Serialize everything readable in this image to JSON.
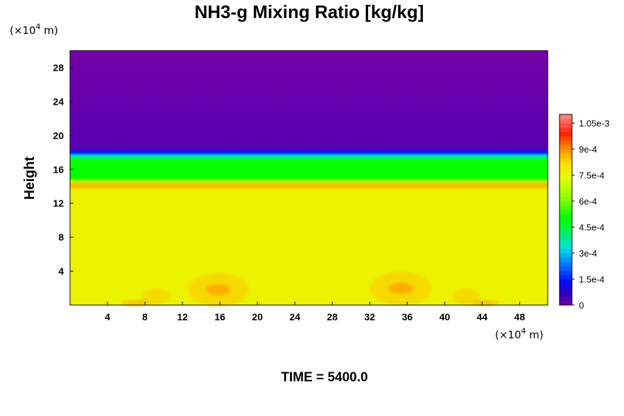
{
  "chart_data": {
    "type": "heatmap",
    "title": "NH3-g Mixing Ratio [kg/kg]",
    "ylabel": "Height",
    "x_unit_prefix": "(×10",
    "x_unit_exp": "4",
    "x_unit_suffix": " m)",
    "y_unit_prefix": "(×10",
    "y_unit_exp": "4",
    "y_unit_suffix": " m)",
    "footer": "TIME = 5400.0",
    "xlim": [
      0,
      51
    ],
    "ylim": [
      0,
      30
    ],
    "x_ticks": [
      4,
      8,
      12,
      16,
      20,
      24,
      28,
      32,
      36,
      40,
      44,
      48
    ],
    "y_ticks": [
      4,
      8,
      12,
      16,
      20,
      24,
      28
    ],
    "colorbar": {
      "range": [
        0,
        0.0011
      ],
      "tick_values": [
        0,
        0.00015,
        0.0003,
        0.00045,
        0.0006,
        0.00075,
        0.0009,
        0.00105
      ],
      "tick_labels": [
        "0",
        "1.5e-4",
        "3e-4",
        "4.5e-4",
        "6e-4",
        "7.5e-4",
        "9e-4",
        "1.05e-3"
      ]
    },
    "field_profile": [
      {
        "height": 0,
        "value": 0.00076
      },
      {
        "height": 13.5,
        "value": 0.00076
      },
      {
        "height": 14.1,
        "value": 0.00086
      },
      {
        "height": 14.6,
        "value": 0.00066
      },
      {
        "height": 15.0,
        "value": 0.00051
      },
      {
        "height": 17.0,
        "value": 0.00051
      },
      {
        "height": 17.6,
        "value": 0.00035
      },
      {
        "height": 18.0,
        "value": 0.00015
      },
      {
        "height": 18.4,
        "value": 3e-05
      },
      {
        "height": 30,
        "value": 0.0
      }
    ]
  }
}
